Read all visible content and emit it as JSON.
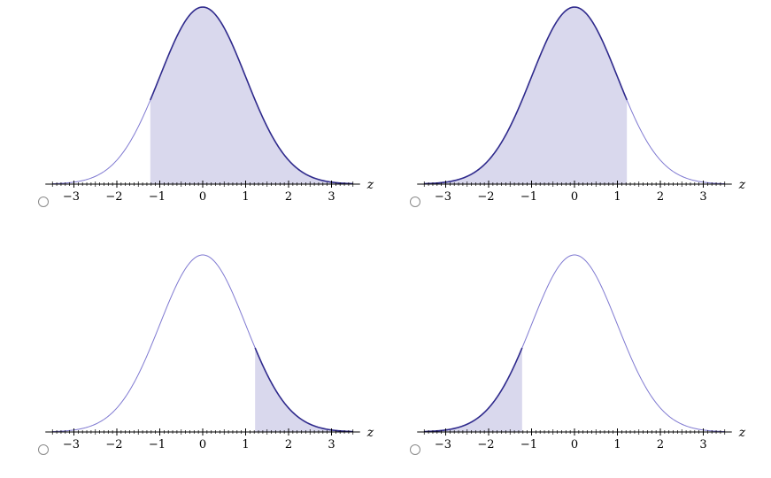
{
  "chart_data": {
    "type": "area",
    "distribution": "standard normal",
    "xlabel": "z",
    "xlim": [
      -3.5,
      3.5
    ],
    "tick_labels": [
      "−3",
      "−2",
      "−1",
      "0",
      "1",
      "2",
      "3"
    ],
    "tick_values": [
      -3,
      -2,
      -1,
      0,
      1,
      2,
      3
    ],
    "colors": {
      "fill": "#d9d8ed",
      "curve": "#2f2a8c",
      "curve_light": "#7f79d1",
      "axis": "#000000"
    },
    "options": [
      {
        "id": "a",
        "shade_from": -1.22,
        "shade_to": 3.5
      },
      {
        "id": "b",
        "shade_from": -3.5,
        "shade_to": 1.22
      },
      {
        "id": "c",
        "shade_from": 1.22,
        "shade_to": 3.5
      },
      {
        "id": "d",
        "shade_from": -3.5,
        "shade_to": -1.22
      }
    ]
  }
}
